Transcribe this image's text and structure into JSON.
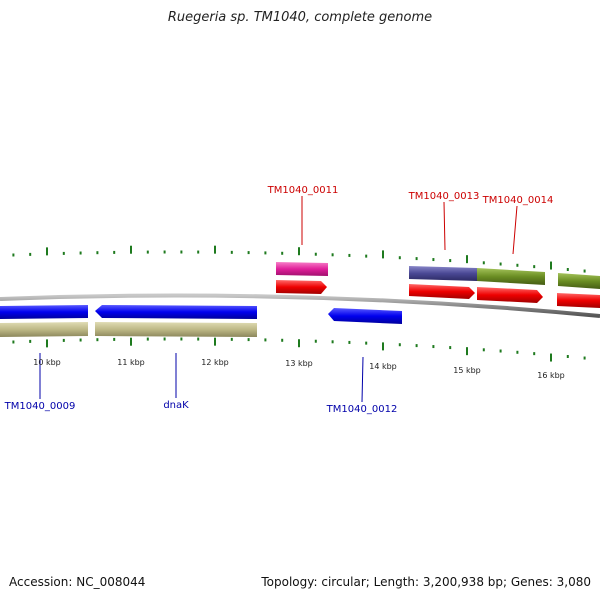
{
  "title": "Ruegeria sp. TM1040, complete genome",
  "accession": "Accession: NC_008044",
  "topology": "Topology: circular; Length: 3,200,938 bp; Genes: 3,080",
  "colors": {
    "backbone": "#8a8a8a",
    "tick": "#1e7a1e",
    "top_label": "#cc0000",
    "bottom_label": "#0000aa",
    "blue_feature": "#0000ee",
    "red_feature": "#ee0000",
    "khaki_feature": "#bdb886",
    "magenta_feature": "#e0209a",
    "purple_feature": "#4a4894",
    "olive_feature": "#6b8e23"
  },
  "scale_labels": [
    "10 kbp",
    "11 kbp",
    "12 kbp",
    "13 kbp",
    "14 kbp",
    "15 kbp",
    "16 kbp"
  ],
  "top_labels": [
    "TM1040_0011",
    "TM1040_0013",
    "TM1040_0014"
  ],
  "bottom_labels": [
    "TM1040_0009",
    "dnaK",
    "TM1040_0012"
  ]
}
